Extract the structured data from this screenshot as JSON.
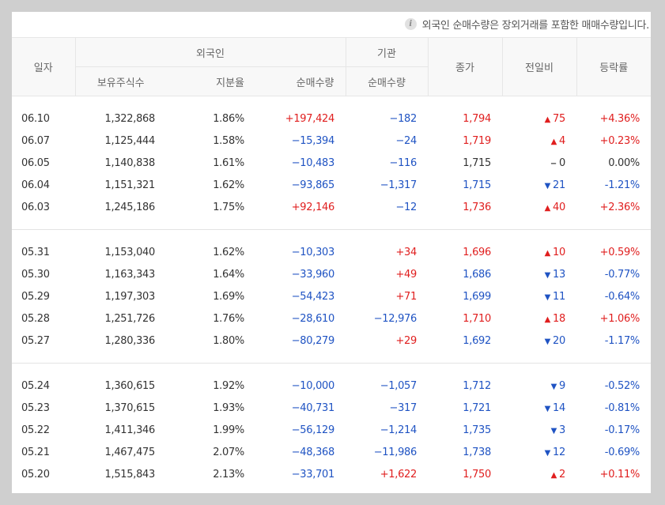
{
  "notice": "외국인 순매수량은 장외거래를 포함한 매매수량입니다.",
  "header": {
    "date": "일자",
    "foreign": "외국인",
    "institution": "기관",
    "close": "종가",
    "change": "전일비",
    "rate": "등락률",
    "holdings": "보유주식수",
    "share": "지분율",
    "foreign_net": "순매수량",
    "inst_net": "순매수량"
  },
  "colors": {
    "up": "#e01e1e",
    "down": "#1f53c3",
    "flat": "#333333"
  },
  "icons": {
    "info": "info-icon",
    "up": "triangle-up-icon",
    "down": "triangle-down-icon",
    "flat": "dash-icon"
  },
  "groups": [
    [
      {
        "date": "06.10",
        "holdings": "1,322,868",
        "share": "1.86%",
        "foreign_net": "+197,424",
        "inst_net": "−182",
        "close": "1,794",
        "dir": "up",
        "change": "75",
        "rate": "+4.36%"
      },
      {
        "date": "06.07",
        "holdings": "1,125,444",
        "share": "1.58%",
        "foreign_net": "−15,394",
        "inst_net": "−24",
        "close": "1,719",
        "dir": "up",
        "change": "4",
        "rate": "+0.23%"
      },
      {
        "date": "06.05",
        "holdings": "1,140,838",
        "share": "1.61%",
        "foreign_net": "−10,483",
        "inst_net": "−116",
        "close": "1,715",
        "dir": "flat",
        "change": "0",
        "rate": "0.00%"
      },
      {
        "date": "06.04",
        "holdings": "1,151,321",
        "share": "1.62%",
        "foreign_net": "−93,865",
        "inst_net": "−1,317",
        "close": "1,715",
        "dir": "down",
        "change": "21",
        "rate": "-1.21%"
      },
      {
        "date": "06.03",
        "holdings": "1,245,186",
        "share": "1.75%",
        "foreign_net": "+92,146",
        "inst_net": "−12",
        "close": "1,736",
        "dir": "up",
        "change": "40",
        "rate": "+2.36%"
      }
    ],
    [
      {
        "date": "05.31",
        "holdings": "1,153,040",
        "share": "1.62%",
        "foreign_net": "−10,303",
        "inst_net": "+34",
        "close": "1,696",
        "dir": "up",
        "change": "10",
        "rate": "+0.59%"
      },
      {
        "date": "05.30",
        "holdings": "1,163,343",
        "share": "1.64%",
        "foreign_net": "−33,960",
        "inst_net": "+49",
        "close": "1,686",
        "dir": "down",
        "change": "13",
        "rate": "-0.77%"
      },
      {
        "date": "05.29",
        "holdings": "1,197,303",
        "share": "1.69%",
        "foreign_net": "−54,423",
        "inst_net": "+71",
        "close": "1,699",
        "dir": "down",
        "change": "11",
        "rate": "-0.64%"
      },
      {
        "date": "05.28",
        "holdings": "1,251,726",
        "share": "1.76%",
        "foreign_net": "−28,610",
        "inst_net": "−12,976",
        "close": "1,710",
        "dir": "up",
        "change": "18",
        "rate": "+1.06%"
      },
      {
        "date": "05.27",
        "holdings": "1,280,336",
        "share": "1.80%",
        "foreign_net": "−80,279",
        "inst_net": "+29",
        "close": "1,692",
        "dir": "down",
        "change": "20",
        "rate": "-1.17%"
      }
    ],
    [
      {
        "date": "05.24",
        "holdings": "1,360,615",
        "share": "1.92%",
        "foreign_net": "−10,000",
        "inst_net": "−1,057",
        "close": "1,712",
        "dir": "down",
        "change": "9",
        "rate": "-0.52%"
      },
      {
        "date": "05.23",
        "holdings": "1,370,615",
        "share": "1.93%",
        "foreign_net": "−40,731",
        "inst_net": "−317",
        "close": "1,721",
        "dir": "down",
        "change": "14",
        "rate": "-0.81%"
      },
      {
        "date": "05.22",
        "holdings": "1,411,346",
        "share": "1.99%",
        "foreign_net": "−56,129",
        "inst_net": "−1,214",
        "close": "1,735",
        "dir": "down",
        "change": "3",
        "rate": "-0.17%"
      },
      {
        "date": "05.21",
        "holdings": "1,467,475",
        "share": "2.07%",
        "foreign_net": "−48,368",
        "inst_net": "−11,986",
        "close": "1,738",
        "dir": "down",
        "change": "12",
        "rate": "-0.69%"
      },
      {
        "date": "05.20",
        "holdings": "1,515,843",
        "share": "2.13%",
        "foreign_net": "−33,701",
        "inst_net": "+1,622",
        "close": "1,750",
        "dir": "up",
        "change": "2",
        "rate": "+0.11%"
      }
    ]
  ]
}
